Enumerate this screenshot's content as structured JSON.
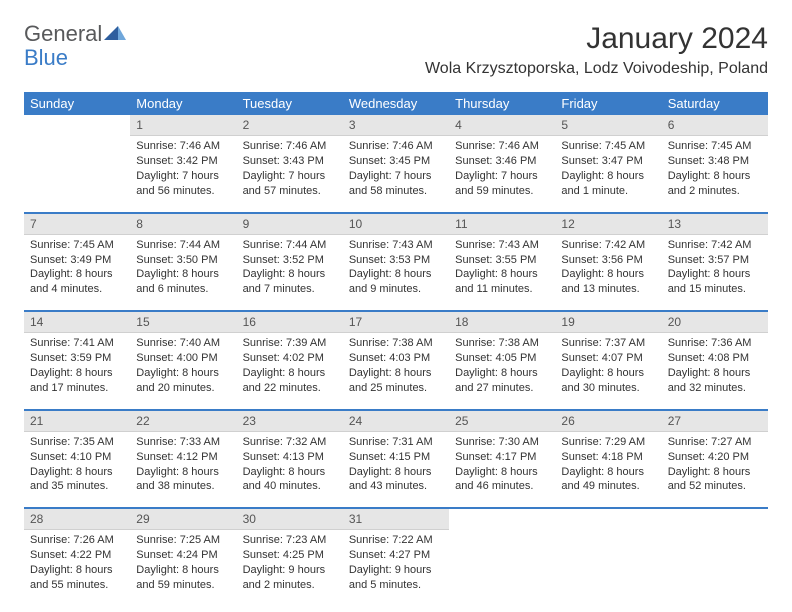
{
  "brand": {
    "line1": "General",
    "line2": "Blue"
  },
  "title": "January 2024",
  "location": "Wola Krzysztoporska, Lodz Voivodeship, Poland",
  "colors": {
    "header_bg": "#3a7cc7",
    "header_fg": "#ffffff",
    "daynum_bg": "#e6e6e6",
    "rule": "#3a7cc7",
    "text": "#333333",
    "logo_gray": "#58595b",
    "logo_blue": "#3a7cc7"
  },
  "day_names": [
    "Sunday",
    "Monday",
    "Tuesday",
    "Wednesday",
    "Thursday",
    "Friday",
    "Saturday"
  ],
  "weeks": [
    [
      null,
      {
        "n": "1",
        "sr": "7:46 AM",
        "ss": "3:42 PM",
        "dl": "7 hours and 56 minutes."
      },
      {
        "n": "2",
        "sr": "7:46 AM",
        "ss": "3:43 PM",
        "dl": "7 hours and 57 minutes."
      },
      {
        "n": "3",
        "sr": "7:46 AM",
        "ss": "3:45 PM",
        "dl": "7 hours and 58 minutes."
      },
      {
        "n": "4",
        "sr": "7:46 AM",
        "ss": "3:46 PM",
        "dl": "7 hours and 59 minutes."
      },
      {
        "n": "5",
        "sr": "7:45 AM",
        "ss": "3:47 PM",
        "dl": "8 hours and 1 minute."
      },
      {
        "n": "6",
        "sr": "7:45 AM",
        "ss": "3:48 PM",
        "dl": "8 hours and 2 minutes."
      }
    ],
    [
      {
        "n": "7",
        "sr": "7:45 AM",
        "ss": "3:49 PM",
        "dl": "8 hours and 4 minutes."
      },
      {
        "n": "8",
        "sr": "7:44 AM",
        "ss": "3:50 PM",
        "dl": "8 hours and 6 minutes."
      },
      {
        "n": "9",
        "sr": "7:44 AM",
        "ss": "3:52 PM",
        "dl": "8 hours and 7 minutes."
      },
      {
        "n": "10",
        "sr": "7:43 AM",
        "ss": "3:53 PM",
        "dl": "8 hours and 9 minutes."
      },
      {
        "n": "11",
        "sr": "7:43 AM",
        "ss": "3:55 PM",
        "dl": "8 hours and 11 minutes."
      },
      {
        "n": "12",
        "sr": "7:42 AM",
        "ss": "3:56 PM",
        "dl": "8 hours and 13 minutes."
      },
      {
        "n": "13",
        "sr": "7:42 AM",
        "ss": "3:57 PM",
        "dl": "8 hours and 15 minutes."
      }
    ],
    [
      {
        "n": "14",
        "sr": "7:41 AM",
        "ss": "3:59 PM",
        "dl": "8 hours and 17 minutes."
      },
      {
        "n": "15",
        "sr": "7:40 AM",
        "ss": "4:00 PM",
        "dl": "8 hours and 20 minutes."
      },
      {
        "n": "16",
        "sr": "7:39 AM",
        "ss": "4:02 PM",
        "dl": "8 hours and 22 minutes."
      },
      {
        "n": "17",
        "sr": "7:38 AM",
        "ss": "4:03 PM",
        "dl": "8 hours and 25 minutes."
      },
      {
        "n": "18",
        "sr": "7:38 AM",
        "ss": "4:05 PM",
        "dl": "8 hours and 27 minutes."
      },
      {
        "n": "19",
        "sr": "7:37 AM",
        "ss": "4:07 PM",
        "dl": "8 hours and 30 minutes."
      },
      {
        "n": "20",
        "sr": "7:36 AM",
        "ss": "4:08 PM",
        "dl": "8 hours and 32 minutes."
      }
    ],
    [
      {
        "n": "21",
        "sr": "7:35 AM",
        "ss": "4:10 PM",
        "dl": "8 hours and 35 minutes."
      },
      {
        "n": "22",
        "sr": "7:33 AM",
        "ss": "4:12 PM",
        "dl": "8 hours and 38 minutes."
      },
      {
        "n": "23",
        "sr": "7:32 AM",
        "ss": "4:13 PM",
        "dl": "8 hours and 40 minutes."
      },
      {
        "n": "24",
        "sr": "7:31 AM",
        "ss": "4:15 PM",
        "dl": "8 hours and 43 minutes."
      },
      {
        "n": "25",
        "sr": "7:30 AM",
        "ss": "4:17 PM",
        "dl": "8 hours and 46 minutes."
      },
      {
        "n": "26",
        "sr": "7:29 AM",
        "ss": "4:18 PM",
        "dl": "8 hours and 49 minutes."
      },
      {
        "n": "27",
        "sr": "7:27 AM",
        "ss": "4:20 PM",
        "dl": "8 hours and 52 minutes."
      }
    ],
    [
      {
        "n": "28",
        "sr": "7:26 AM",
        "ss": "4:22 PM",
        "dl": "8 hours and 55 minutes."
      },
      {
        "n": "29",
        "sr": "7:25 AM",
        "ss": "4:24 PM",
        "dl": "8 hours and 59 minutes."
      },
      {
        "n": "30",
        "sr": "7:23 AM",
        "ss": "4:25 PM",
        "dl": "9 hours and 2 minutes."
      },
      {
        "n": "31",
        "sr": "7:22 AM",
        "ss": "4:27 PM",
        "dl": "9 hours and 5 minutes."
      },
      null,
      null,
      null
    ]
  ],
  "labels": {
    "sunrise": "Sunrise:",
    "sunset": "Sunset:",
    "daylight": "Daylight:"
  }
}
